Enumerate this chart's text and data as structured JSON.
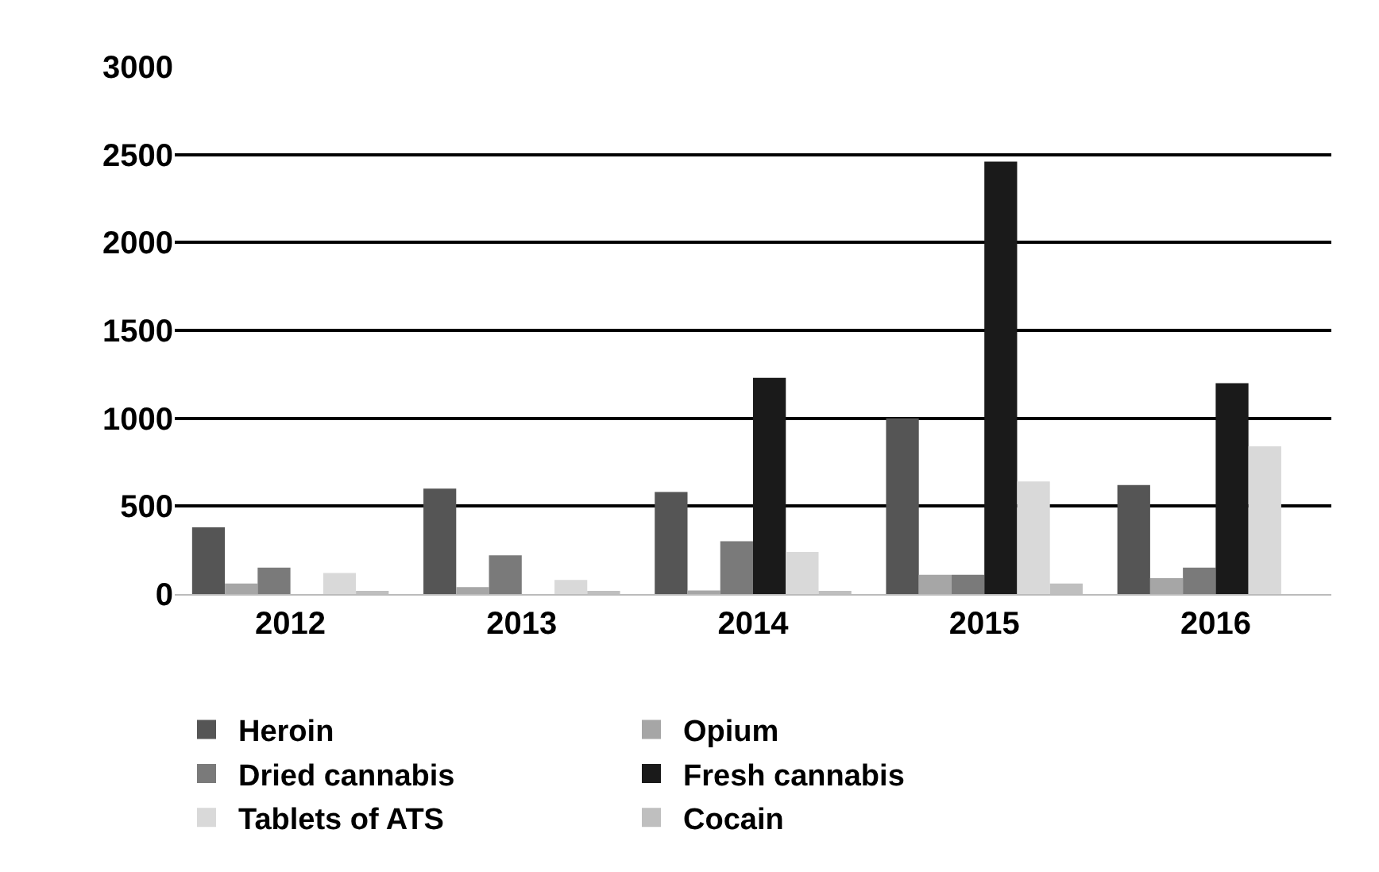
{
  "chart_data": {
    "type": "bar",
    "categories": [
      "2012",
      "2013",
      "2014",
      "2015",
      "2016"
    ],
    "series": [
      {
        "name": "Heroin",
        "color": "#555555",
        "values": [
          380,
          600,
          580,
          1000,
          620
        ]
      },
      {
        "name": "Opium",
        "color": "#a6a6a6",
        "values": [
          60,
          40,
          20,
          110,
          90
        ]
      },
      {
        "name": "Dried cannabis",
        "color": "#7a7a7a",
        "values": [
          150,
          220,
          300,
          110,
          150
        ]
      },
      {
        "name": "Fresh cannabis",
        "color": "#1a1a1a",
        "values": [
          null,
          null,
          1230,
          2460,
          1200
        ]
      },
      {
        "name": "Tablets of ATS",
        "color": "#d9d9d9",
        "values": [
          120,
          80,
          240,
          640,
          840
        ]
      },
      {
        "name": "Cocain",
        "color": "#bfbfbf",
        "values": [
          10,
          10,
          10,
          60,
          null
        ]
      }
    ],
    "ylim": [
      0,
      3000
    ],
    "yticks": [
      0,
      500,
      1000,
      1500,
      2000,
      2500,
      3000
    ],
    "grid": "y",
    "legend": "bottom"
  }
}
